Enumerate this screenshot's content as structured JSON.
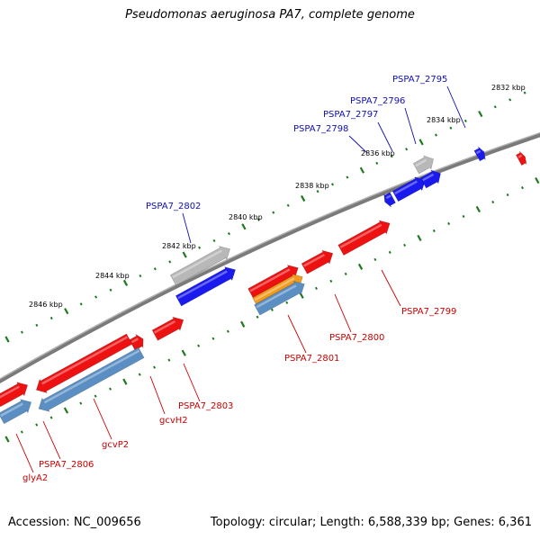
{
  "title": "Pseudomonas aeruginosa PA7, complete genome",
  "footer": {
    "accession": "Accession: NC_009656",
    "topology": "Topology: circular; Length: 6,588,339 bp; Genes: 6,361"
  },
  "colors": {
    "backbone": "#7a7a7a",
    "tick": "#1f7a1f",
    "forward_gene": "#1a1aee",
    "forward_pseudo": "#b8b8b8",
    "reverse_gene": "#ee1111",
    "reverse_rna": "#5b8fc4",
    "reverse_orange": "#f29a1c",
    "label_forward": "#1010b0",
    "label_reverse": "#cc0000"
  },
  "kbp_labels": [
    "2832 kbp",
    "2834 kbp",
    "2836 kbp",
    "2838 kbp",
    "2840 kbp",
    "2842 kbp",
    "2844 kbp",
    "2846 kbp"
  ],
  "forward_labels": [
    "PSPA7_2795",
    "PSPA7_2796",
    "PSPA7_2797",
    "PSPA7_2798",
    "PSPA7_2802"
  ],
  "reverse_labels": [
    "PSPA7_2799",
    "PSPA7_2800",
    "PSPA7_2801",
    "PSPA7_2803",
    "gcvH2",
    "gcvP2",
    "PSPA7_2806",
    "glyA2"
  ]
}
